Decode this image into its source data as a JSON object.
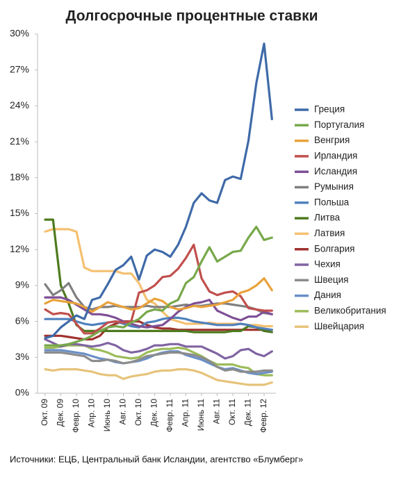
{
  "chart_data": {
    "type": "line",
    "title": "Долгосрочные процентные ставки",
    "source": "Источники: ЕЦБ, Центральный банк Исландии, агентство «Блумберг»",
    "categories": [
      "Окт. 09",
      null,
      "Дек. 09",
      null,
      "Февр. 10",
      null,
      "Апр. 10",
      null,
      "Июнь 10",
      null,
      "Авг. 10",
      null,
      "Окт. 10",
      null,
      "Дек. 10",
      null,
      "Февр. 11",
      null,
      "Апр. 11",
      null,
      "Июнь 11",
      null,
      "Авг. 11",
      null,
      "Окт. 11",
      null,
      "Дек. 11",
      null,
      "Февр. 12",
      null
    ],
    "ylim": [
      0,
      30
    ],
    "yticks": [
      {
        "value": 0,
        "label": "0%"
      },
      {
        "value": 3,
        "label": "3%"
      },
      {
        "value": 6,
        "label": "6%"
      },
      {
        "value": 9,
        "label": "9%"
      },
      {
        "value": 12,
        "label": "12%"
      },
      {
        "value": 15,
        "label": "15%"
      },
      {
        "value": 18,
        "label": "18%"
      },
      {
        "value": 21,
        "label": "21%"
      },
      {
        "value": 24,
        "label": "24%"
      },
      {
        "value": 27,
        "label": "27%"
      },
      {
        "value": 30,
        "label": "30%"
      }
    ],
    "grid": false,
    "legend": "right",
    "series": [
      {
        "name": "Греция",
        "color": "#3f6aa8",
        "values": [
          4.6,
          4.8,
          5.5,
          6.0,
          6.5,
          6.2,
          7.8,
          8.0,
          9.1,
          10.3,
          10.7,
          11.4,
          9.5,
          11.5,
          12.0,
          11.8,
          11.4,
          12.4,
          13.9,
          15.9,
          16.7,
          16.1,
          15.9,
          17.8,
          18.1,
          17.9,
          21.1,
          25.9,
          29.2,
          22.9
        ]
      },
      {
        "name": "Португалия",
        "color": "#77a84a",
        "values": [
          4.0,
          4.0,
          4.0,
          4.1,
          4.3,
          4.5,
          4.8,
          5.2,
          5.5,
          5.6,
          5.5,
          5.9,
          6.2,
          6.8,
          7.0,
          6.9,
          7.5,
          7.8,
          9.2,
          9.7,
          11.0,
          12.2,
          11.0,
          11.4,
          11.8,
          11.9,
          13.0,
          13.9,
          12.8,
          13.0
        ]
      },
      {
        "name": "Венгрия",
        "color": "#e9a23b",
        "values": [
          7.5,
          7.8,
          7.7,
          7.6,
          7.5,
          7.2,
          6.8,
          7.2,
          7.6,
          7.4,
          7.2,
          7.0,
          7.1,
          7.5,
          7.9,
          7.7,
          7.2,
          7.0,
          7.1,
          7.3,
          7.2,
          7.3,
          7.4,
          7.6,
          7.8,
          8.4,
          8.6,
          9.0,
          9.6,
          8.6
        ]
      },
      {
        "name": "Ирландия",
        "color": "#c0504d",
        "values": [
          7.0,
          6.6,
          6.7,
          6.6,
          5.8,
          5.0,
          5.0,
          5.4,
          5.9,
          6.0,
          5.9,
          6.0,
          8.4,
          8.6,
          9.0,
          9.7,
          9.8,
          10.4,
          11.3,
          12.4,
          9.6,
          8.5,
          8.2,
          8.4,
          8.5,
          8.1,
          7.1,
          7.0,
          6.9,
          6.9
        ]
      },
      {
        "name": "Исландия",
        "color": "#7e4f95",
        "values": [
          8.0,
          8.0,
          8.0,
          7.8,
          7.4,
          7.0,
          6.6,
          6.6,
          6.5,
          6.3,
          6.0,
          5.8,
          5.6,
          5.5,
          5.6,
          5.7,
          6.2,
          6.8,
          7.2,
          7.5,
          7.6,
          7.8,
          6.9,
          6.6,
          6.3,
          6.1,
          6.4,
          6.4,
          6.8,
          6.6
        ]
      },
      {
        "name": "Румыния",
        "color": "#7f7f7f",
        "values": [
          9.1,
          8.2,
          8.6,
          9.2,
          8.0,
          7.2,
          7.0,
          7.2,
          7.2,
          7.3,
          7.2,
          7.2,
          7.2,
          7.3,
          7.2,
          7.2,
          7.2,
          7.3,
          7.4,
          7.3,
          7.3,
          7.4,
          7.5,
          7.5,
          7.4,
          7.3,
          7.2,
          7.0,
          6.7,
          6.6
        ]
      },
      {
        "name": "Польша",
        "color": "#4f81bd",
        "values": [
          6.2,
          6.2,
          6.2,
          6.2,
          6.0,
          5.8,
          5.7,
          5.8,
          5.9,
          6.0,
          5.8,
          5.6,
          5.5,
          5.9,
          6.0,
          6.2,
          6.3,
          6.3,
          6.2,
          6.0,
          5.9,
          5.8,
          5.7,
          5.7,
          5.7,
          5.8,
          5.7,
          5.5,
          5.4,
          5.3
        ]
      },
      {
        "name": "Литва",
        "color": "#4e7a1e",
        "values": [
          14.5,
          14.5,
          9.0,
          7.5,
          5.7,
          5.2,
          5.2,
          5.2,
          5.2,
          5.2,
          5.2,
          5.2,
          5.2,
          5.2,
          5.2,
          5.2,
          5.2,
          5.2,
          5.2,
          5.1,
          5.1,
          5.1,
          5.1,
          5.1,
          5.2,
          5.2,
          5.6,
          5.5,
          5.2,
          5.1
        ]
      },
      {
        "name": "Латвия",
        "color": "#f5c070",
        "values": [
          13.5,
          13.7,
          13.7,
          13.7,
          13.5,
          10.5,
          10.2,
          10.2,
          10.2,
          10.2,
          10.0,
          10.0,
          9.2,
          7.8,
          7.5,
          6.8,
          6.2,
          6.0,
          5.8,
          5.8,
          5.8,
          5.9,
          5.8,
          5.8,
          5.8,
          5.8,
          5.7,
          5.7,
          5.6,
          5.6
        ]
      },
      {
        "name": "Болгария",
        "color": "#a0322e",
        "values": [
          4.8,
          4.8,
          4.8,
          4.7,
          4.6,
          4.5,
          4.5,
          4.8,
          5.5,
          5.8,
          6.0,
          6.0,
          6.0,
          5.7,
          5.5,
          5.4,
          5.4,
          5.3,
          5.3,
          5.3,
          5.3,
          5.3,
          5.3,
          5.3,
          5.3,
          5.3,
          5.3,
          5.3,
          5.3,
          5.3
        ]
      },
      {
        "name": "Чехия",
        "color": "#8064a2",
        "values": [
          4.5,
          4.2,
          3.9,
          4.1,
          4.1,
          4.0,
          3.9,
          4.0,
          4.2,
          4.0,
          3.6,
          3.4,
          3.5,
          3.7,
          4.0,
          4.0,
          4.1,
          4.1,
          3.9,
          3.9,
          3.9,
          3.6,
          3.3,
          2.9,
          3.1,
          3.6,
          3.7,
          3.3,
          3.1,
          3.5
        ]
      },
      {
        "name": "Швеция",
        "color": "#8c8c8c",
        "values": [
          3.4,
          3.4,
          3.4,
          3.3,
          3.2,
          3.1,
          2.7,
          2.7,
          2.8,
          2.7,
          2.5,
          2.6,
          2.8,
          3.1,
          3.2,
          3.3,
          3.4,
          3.4,
          3.3,
          3.2,
          3.0,
          2.7,
          2.2,
          1.9,
          2.0,
          1.8,
          1.8,
          1.8,
          1.9,
          1.9
        ]
      },
      {
        "name": "Дания",
        "color": "#6a8fc7",
        "values": [
          3.6,
          3.6,
          3.6,
          3.5,
          3.4,
          3.3,
          3.1,
          2.9,
          2.8,
          2.6,
          2.5,
          2.6,
          2.7,
          2.9,
          3.2,
          3.4,
          3.5,
          3.5,
          3.2,
          3.0,
          2.8,
          2.5,
          2.2,
          2.0,
          2.1,
          1.9,
          1.7,
          1.6,
          1.7,
          1.8
        ]
      },
      {
        "name": "Великобритания",
        "color": "#9bbb59",
        "values": [
          3.8,
          3.8,
          3.9,
          4.0,
          4.0,
          4.0,
          3.7,
          3.6,
          3.4,
          3.1,
          3.0,
          2.9,
          3.0,
          3.4,
          3.6,
          3.7,
          3.7,
          3.8,
          3.7,
          3.4,
          3.1,
          2.7,
          2.4,
          2.4,
          2.4,
          2.2,
          2.1,
          1.6,
          1.5,
          1.5
        ]
      },
      {
        "name": "Швейцария",
        "color": "#e6c37a",
        "values": [
          2.0,
          1.9,
          2.0,
          2.0,
          2.0,
          1.9,
          1.8,
          1.6,
          1.5,
          1.5,
          1.2,
          1.4,
          1.5,
          1.6,
          1.8,
          1.9,
          1.9,
          2.0,
          2.0,
          1.9,
          1.7,
          1.4,
          1.1,
          1.0,
          0.9,
          0.8,
          0.7,
          0.7,
          0.7,
          0.9
        ]
      }
    ]
  }
}
